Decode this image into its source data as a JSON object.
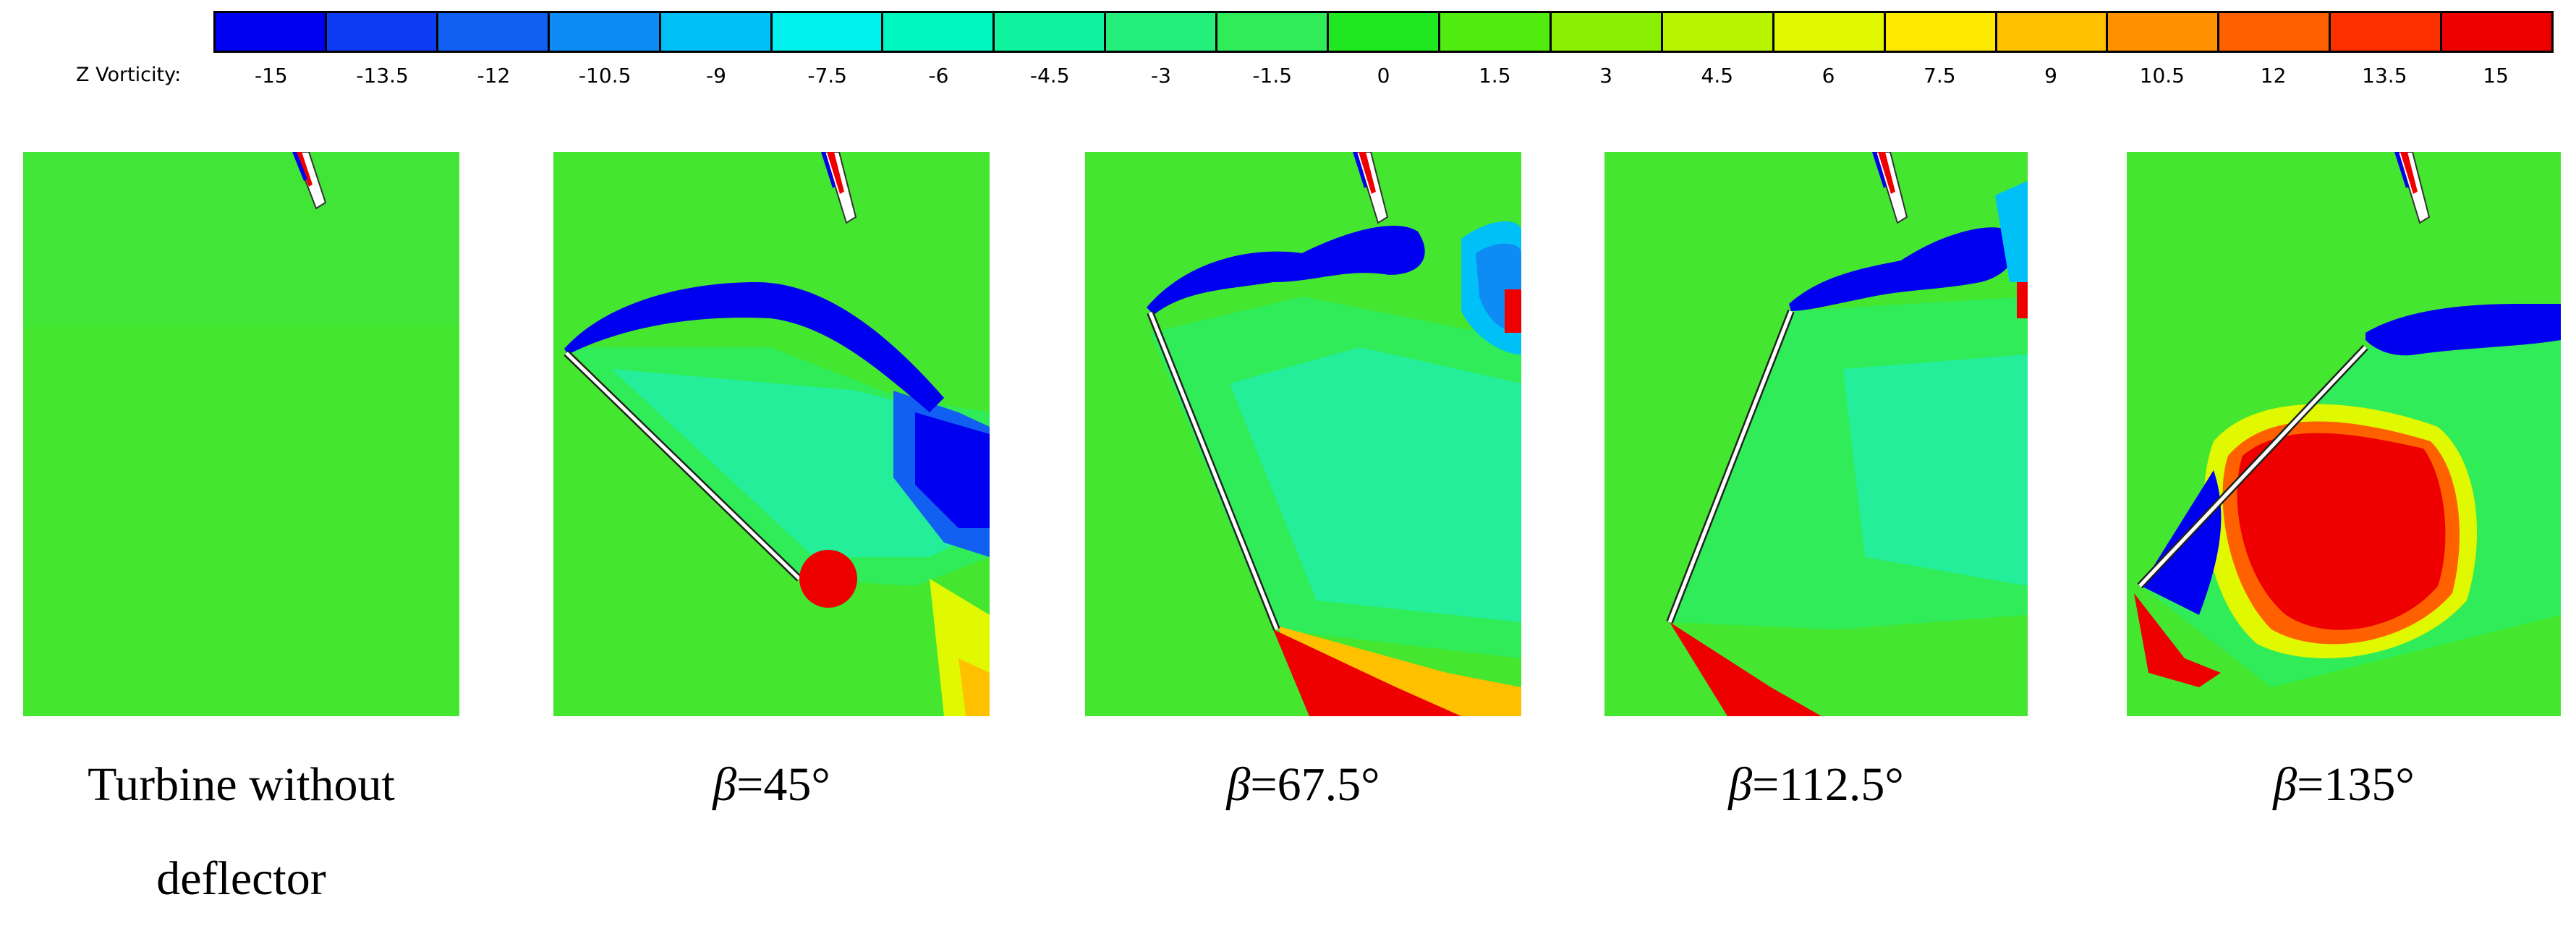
{
  "legend": {
    "variable_label": "Z Vorticity:",
    "ticks": [
      "-15",
      "-13.5",
      "-12",
      "-10.5",
      "-9",
      "-7.5",
      "-6",
      "-4.5",
      "-3",
      "-1.5",
      "0",
      "1.5",
      "3",
      "4.5",
      "6",
      "7.5",
      "9",
      "10.5",
      "12",
      "13.5",
      "15"
    ],
    "colors": [
      "#0000f0",
      "#0e3cf2",
      "#1160f2",
      "#0f8cf4",
      "#00c0f8",
      "#00f0ec",
      "#00f8c0",
      "#10f4a0",
      "#24ee7c",
      "#30ec58",
      "#20e820",
      "#50ec10",
      "#88f000",
      "#b8f400",
      "#e0f800",
      "#ffe800",
      "#ffc000",
      "#ff9000",
      "#ff6000",
      "#ff3000",
      "#ee0000"
    ]
  },
  "panels": [
    {
      "caption_main": "Turbine without",
      "caption_line2": "deflector"
    },
    {
      "beta_symbol": "β",
      "caption": "=45°"
    },
    {
      "beta_symbol": "β",
      "caption": "=67.5°"
    },
    {
      "beta_symbol": "β",
      "caption": "=112.5°"
    },
    {
      "beta_symbol": "β",
      "caption": "=135°"
    }
  ]
}
